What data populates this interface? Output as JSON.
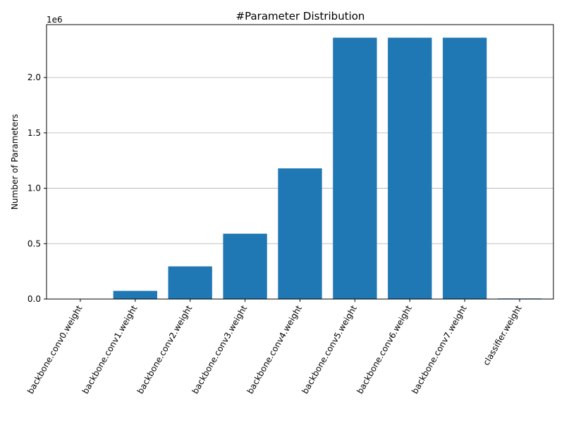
{
  "chart_data": {
    "type": "bar",
    "title": "#Parameter Distribution",
    "xlabel": "",
    "ylabel": "Number of Parameters",
    "y_scale_label": "1e6",
    "categories": [
      "backbone.conv0.weight",
      "backbone.conv1.weight",
      "backbone.conv2.weight",
      "backbone.conv3.weight",
      "backbone.conv4.weight",
      "backbone.conv5.weight",
      "backbone.conv6.weight",
      "backbone.conv7.weight",
      "classifier.weight"
    ],
    "values": [
      864,
      73728,
      294912,
      589824,
      1179648,
      2359296,
      2359296,
      2359296,
      5120
    ],
    "ylim": [
      0,
      2477261
    ],
    "yticks": [
      0,
      500000,
      1000000,
      1500000,
      2000000
    ],
    "ytick_labels": [
      "0.0",
      "0.5",
      "1.0",
      "1.5",
      "2.0"
    ],
    "grid": "horizontal",
    "bar_color": "#1f77b4",
    "xtick_rotation": "60"
  }
}
